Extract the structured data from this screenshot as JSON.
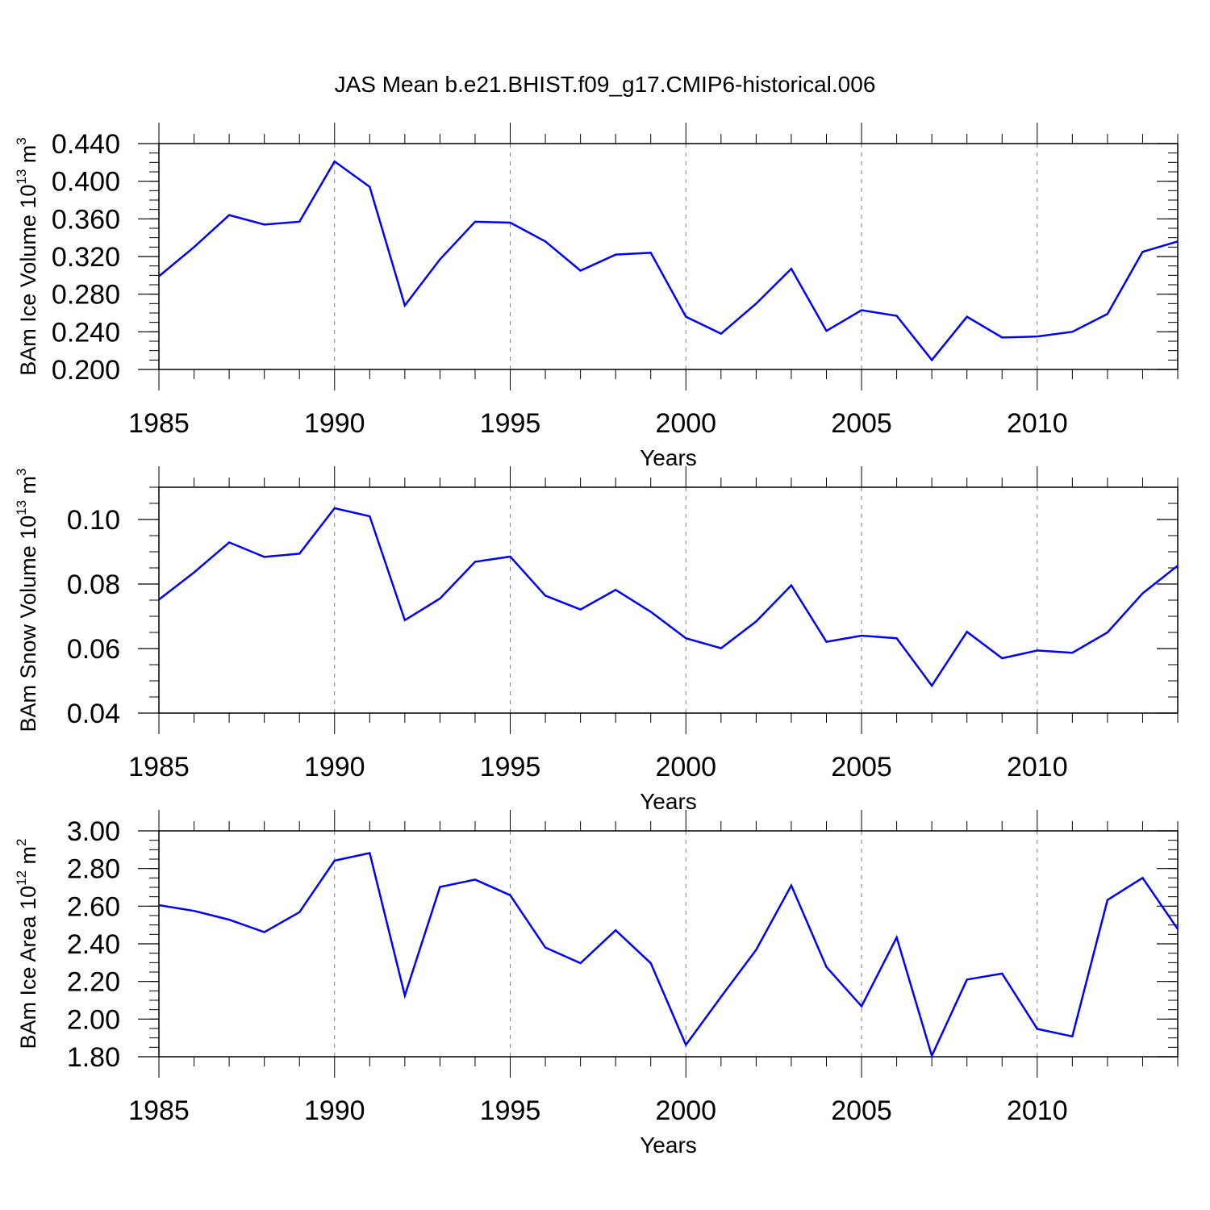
{
  "title": "JAS Mean b.e21.BHIST.f09_g17.CMIP6-historical.006",
  "colors": {
    "line": "#0000ff",
    "axis": "#000000",
    "grid": "#7f7f7f",
    "background": "#ffffff"
  },
  "chart_data": [
    {
      "type": "line",
      "ylabel": "BAm Ice Volume 10",
      "ylabel_exp": "13",
      "ylabel_unit": "m",
      "ylabel_unit_exp": "3",
      "xlabel": "Years",
      "xlim": [
        1985,
        2014
      ],
      "ylim": [
        0.2,
        0.44
      ],
      "ytick_values": [
        0.2,
        0.24,
        0.28,
        0.32,
        0.36,
        0.4,
        0.44
      ],
      "ytick_labels": [
        "0.200",
        "0.240",
        "0.280",
        "0.320",
        "0.360",
        "0.400",
        "0.440"
      ],
      "ytick_minor_step": 0.01,
      "xtick_values": [
        1985,
        1990,
        1995,
        2000,
        2005,
        2010
      ],
      "xtick_labels": [
        "1985",
        "1990",
        "1995",
        "2000",
        "2005",
        "2010"
      ],
      "grid_x": [
        1990,
        1995,
        2000,
        2005,
        2010
      ],
      "x": [
        1985,
        1986,
        1987,
        1988,
        1989,
        1990,
        1991,
        1992,
        1993,
        1994,
        1995,
        1996,
        1997,
        1998,
        1999,
        2000,
        2001,
        2002,
        2003,
        2004,
        2005,
        2006,
        2007,
        2008,
        2009,
        2010,
        2011,
        2012,
        2013,
        2014
      ],
      "series": [
        {
          "name": "BAm Ice Volume",
          "values": [
            0.299,
            0.33,
            0.364,
            0.354,
            0.357,
            0.421,
            0.394,
            0.268,
            0.317,
            0.357,
            0.356,
            0.336,
            0.305,
            0.322,
            0.324,
            0.256,
            0.238,
            0.27,
            0.307,
            0.241,
            0.263,
            0.257,
            0.21,
            0.256,
            0.234,
            0.235,
            0.24,
            0.259,
            0.325,
            0.336
          ]
        }
      ]
    },
    {
      "type": "line",
      "ylabel": "BAm Snow Volume 10",
      "ylabel_exp": "13",
      "ylabel_unit": "m",
      "ylabel_unit_exp": "3",
      "xlabel": "Years",
      "xlim": [
        1985,
        2014
      ],
      "ylim": [
        0.04,
        0.11
      ],
      "ytick_values": [
        0.04,
        0.06,
        0.08,
        0.1
      ],
      "ytick_labels": [
        "0.04",
        "0.06",
        "0.08",
        "0.10"
      ],
      "ytick_minor_step": 0.005,
      "xtick_values": [
        1985,
        1990,
        1995,
        2000,
        2005,
        2010
      ],
      "xtick_labels": [
        "1985",
        "1990",
        "1995",
        "2000",
        "2005",
        "2010"
      ],
      "grid_x": [
        1990,
        1995,
        2000,
        2005,
        2010
      ],
      "x": [
        1985,
        1986,
        1987,
        1988,
        1989,
        1990,
        1991,
        1992,
        1993,
        1994,
        1995,
        1996,
        1997,
        1998,
        1999,
        2000,
        2001,
        2002,
        2003,
        2004,
        2005,
        2006,
        2007,
        2008,
        2009,
        2010,
        2011,
        2012,
        2013,
        2014
      ],
      "series": [
        {
          "name": "BAm Snow Volume",
          "values": [
            0.0752,
            0.0836,
            0.0929,
            0.0884,
            0.0894,
            0.1035,
            0.101,
            0.0688,
            0.0755,
            0.0869,
            0.0885,
            0.0764,
            0.0721,
            0.0782,
            0.0714,
            0.0632,
            0.0601,
            0.0684,
            0.0796,
            0.0621,
            0.064,
            0.0632,
            0.0485,
            0.0652,
            0.057,
            0.0594,
            0.0587,
            0.065,
            0.0771,
            0.0857
          ]
        }
      ]
    },
    {
      "type": "line",
      "ylabel": "BAm Ice Area 10",
      "ylabel_exp": "12",
      "ylabel_unit": "m",
      "ylabel_unit_exp": "2",
      "xlabel": "Years",
      "xlim": [
        1985,
        2014
      ],
      "ylim": [
        1.8,
        3.0
      ],
      "ytick_values": [
        1.8,
        2.0,
        2.2,
        2.4,
        2.6,
        2.8,
        3.0
      ],
      "ytick_labels": [
        "1.80",
        "2.00",
        "2.20",
        "2.40",
        "2.60",
        "2.80",
        "3.00"
      ],
      "ytick_minor_step": 0.05,
      "xtick_values": [
        1985,
        1990,
        1995,
        2000,
        2005,
        2010
      ],
      "xtick_labels": [
        "1985",
        "1990",
        "1995",
        "2000",
        "2005",
        "2010"
      ],
      "grid_x": [
        1990,
        1995,
        2000,
        2005,
        2010
      ],
      "x": [
        1985,
        1986,
        1987,
        1988,
        1989,
        1990,
        1991,
        1992,
        1993,
        1994,
        1995,
        1996,
        1997,
        1998,
        1999,
        2000,
        2001,
        2002,
        2003,
        2004,
        2005,
        2006,
        2007,
        2008,
        2009,
        2010,
        2011,
        2012,
        2013,
        2014
      ],
      "series": [
        {
          "name": "BAm Ice Area",
          "values": [
            2.605,
            2.575,
            2.528,
            2.462,
            2.568,
            2.842,
            2.882,
            2.125,
            2.702,
            2.741,
            2.658,
            2.38,
            2.297,
            2.472,
            2.297,
            1.863,
            2.118,
            2.368,
            2.71,
            2.277,
            2.068,
            2.434,
            1.805,
            2.21,
            2.242,
            1.948,
            1.908,
            2.633,
            2.75,
            2.478
          ]
        }
      ]
    }
  ]
}
